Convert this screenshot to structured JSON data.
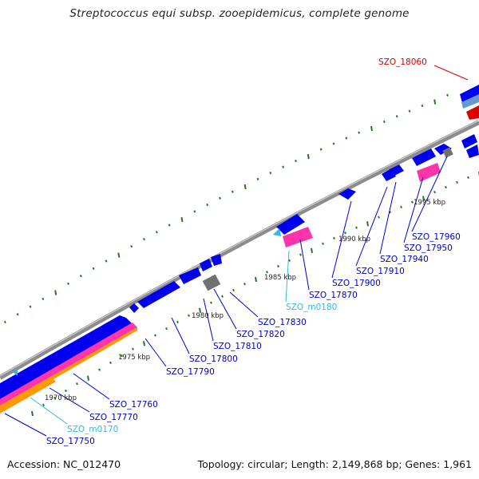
{
  "title": "Streptococcus equi subsp. zooepidemicus, complete genome",
  "footer": {
    "accession": "Accession: NC_012470",
    "summary": "Topology: circular; Length: 2,149,868 bp; Genes: 1,961"
  },
  "colors": {
    "cds": "#0000ee",
    "rna_pink": "#ff33aa",
    "rna_orange": "#ff9900",
    "pseudo_gray": "#707070",
    "highlight_red": "#dd0000",
    "label_blue": "#0000cc",
    "label_cyan": "#33bbdd",
    "label_red": "#dd0000",
    "tick_green": "#227722"
  },
  "ruler_labels": [
    {
      "text": "1970 kbp"
    },
    {
      "text": "1975 kbp"
    },
    {
      "text": "1980 kbp"
    },
    {
      "text": "1985 kbp"
    },
    {
      "text": "1990 kbp"
    },
    {
      "text": "1995 kbp"
    }
  ],
  "feature_labels": [
    {
      "text": "SZO_18060",
      "kind": "highlight"
    },
    {
      "text": "SZO_17960",
      "kind": "gene"
    },
    {
      "text": "SZO_17950",
      "kind": "gene"
    },
    {
      "text": "SZO_17940",
      "kind": "gene"
    },
    {
      "text": "SZO_17910",
      "kind": "gene"
    },
    {
      "text": "SZO_17900",
      "kind": "gene"
    },
    {
      "text": "SZO_17870",
      "kind": "gene"
    },
    {
      "text": "SZO_m0180",
      "kind": "rna"
    },
    {
      "text": "SZO_17830",
      "kind": "gene"
    },
    {
      "text": "SZO_17820",
      "kind": "gene"
    },
    {
      "text": "SZO_17810",
      "kind": "gene"
    },
    {
      "text": "SZO_17800",
      "kind": "gene"
    },
    {
      "text": "SZO_17790",
      "kind": "gene"
    },
    {
      "text": "SZO_17760",
      "kind": "gene"
    },
    {
      "text": "SZO_17770",
      "kind": "gene"
    },
    {
      "text": "SZO_m0170",
      "kind": "rna"
    },
    {
      "text": "SZO_17750",
      "kind": "gene"
    }
  ]
}
